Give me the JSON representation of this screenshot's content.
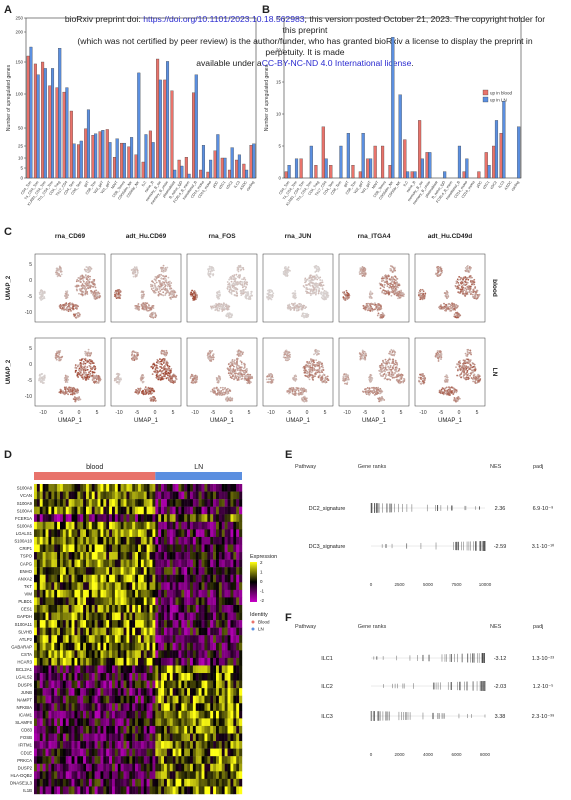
{
  "banner": {
    "line1a": "bioRxiv preprint doi: ",
    "link1": "https://doi.org/10.1101/2023.10.18.562983",
    "line1b": "; this version posted October 21, 2023. The copyright holder for this preprint",
    "line2": "(which was not certified by peer review) is the author/funder, who has granted bioRxiv a license to display the preprint in perpetuity. It is made",
    "line3a": "available under a",
    "link2": "CC-BY-NC-ND 4.0 International license",
    "line3b": "."
  },
  "panels": {
    "A": "A",
    "B": "B",
    "C": "C",
    "D": "D",
    "E": "E",
    "F": "F"
  },
  "panel_c": {
    "columns": [
      "rna_CD69",
      "adt_Hu.CD69",
      "rna_FOS",
      "rna_JUN",
      "rna_ITGA4",
      "adt_Hu.CD49d"
    ],
    "rows": [
      "blood",
      "LN"
    ],
    "ylabel": "UMAP_2",
    "xlabel": "UMAP_1",
    "xticks": [
      "-10",
      "-5",
      "0",
      "5"
    ],
    "yticks": [
      "5",
      "0",
      "-5",
      "-10"
    ]
  },
  "panel_d": {
    "groups": [
      "blood",
      "LN"
    ],
    "group_colors": [
      "#e8736b",
      "#5b8fe0"
    ],
    "genes": [
      "S100A8",
      "VCAN",
      "S100A9",
      "S100A4",
      "FCER1A",
      "S100A6",
      "LGALS1",
      "S100A10",
      "CRIP1",
      "TSPO",
      "CAPG",
      "ENHO",
      "ANXA2",
      "TKT",
      "VIM",
      "PLBD1",
      "CES1",
      "GAPDH",
      "S100A11",
      "SLVHB",
      "ATLP2",
      "GABARAP",
      "CSTA",
      "HCAR3",
      "BCL2A1",
      "LGALS2",
      "DUSP6",
      "JUNB",
      "NAMPT",
      "NFKBIA",
      "ICAM1",
      "SLAMF8",
      "CD83",
      "FOSB",
      "IFITM1",
      "CD1E",
      "PRKCA",
      "DUSP2",
      "HLA-DQB2",
      "DNASE1L3",
      "IL1B"
    ],
    "legend_title": "Expression",
    "legend_ticks": [
      "2",
      "1",
      "0",
      "-1",
      "-2"
    ],
    "identity_title": "Identity",
    "identity_items": [
      "Blood",
      "LN"
    ]
  },
  "panel_e": {
    "headers": [
      "Pathway",
      "Gene ranks",
      "NES",
      "padj"
    ],
    "rows": [
      {
        "pathway": "DC2_signature",
        "nes": "2.36",
        "padj": "6.9·10⁻⁹"
      },
      {
        "pathway": "DC3_signature",
        "nes": "-2.59",
        "padj": "3.1·10⁻¹⁰"
      }
    ],
    "xticks": [
      "0",
      "2500",
      "5000",
      "7500",
      "10000"
    ]
  },
  "panel_f": {
    "headers": [
      "Pathway",
      "Gene ranks",
      "NES",
      "padj"
    ],
    "rows": [
      {
        "pathway": "ILC1",
        "nes": "-3.12",
        "padj": "1.3·10⁻²³"
      },
      {
        "pathway": "ILC2",
        "nes": "-2.03",
        "padj": "1.2·10⁻⁵"
      },
      {
        "pathway": "ILC3",
        "nes": "3.38",
        "padj": "2.3·10⁻³⁹"
      }
    ],
    "xticks": [
      "0",
      "2000",
      "4000",
      "6000",
      "8000"
    ]
  },
  "chart_data": [
    {
      "type": "bar",
      "panel": "A",
      "ylabel": "Number of upregulated genes",
      "ylim": [
        0,
        250
      ],
      "yticks": [
        0,
        5,
        10,
        25,
        50,
        100,
        150,
        200,
        250
      ],
      "categories": [
        "CD4_Tcm",
        "T4_CD4_Tcm",
        "KLRB1_CD4_Tcm",
        "Th1_CD4_Tcm",
        "CD4_Treg",
        "Th17_CD4",
        "CD4_Tem",
        "CD8_Tem",
        "gdT",
        "CD8_Tcm",
        "Vd2_gdT",
        "Vd1_gdT",
        "MAIT",
        "CD8_Temra",
        "CD56dim_NK",
        "CD56br_NK",
        "ILC",
        "naive_B",
        "memory_B_sw",
        "memory_B_unsw",
        "plasmablast",
        "B_naive_IgD",
        "FCRL4_B_mem",
        "transitional_B",
        "CD14_mono",
        "CD16_mono",
        "pDC",
        "cDC1",
        "cDC2",
        "ILC3",
        "ASDC",
        "cycling"
      ],
      "series": [
        {
          "name": "up in blood",
          "color": "#e8736b",
          "values": [
            160,
            147,
            150,
            113,
            110,
            103,
            75,
            27,
            49,
            40,
            45,
            48,
            11,
            29,
            24,
            14,
            8,
            46,
            155,
            122,
            105,
            9,
            11,
            102,
            4,
            3,
            19,
            10,
            4,
            9,
            7,
            26
          ]
        },
        {
          "name": "up in LN",
          "color": "#5b8fe0",
          "values": [
            175,
            130,
            140,
            140,
            173,
            110,
            28,
            32,
            77,
            42,
            47,
            30,
            35,
            29,
            37,
            133,
            41,
            30,
            122,
            151,
            4,
            6,
            2,
            130,
            26,
            9,
            41,
            10,
            23,
            14,
            4,
            28
          ]
        }
      ]
    },
    {
      "type": "bar",
      "panel": "B",
      "ylabel": "Number of upregulated genes",
      "ylim": [
        0,
        25
      ],
      "yticks": [
        0,
        5,
        10,
        15,
        20,
        25
      ],
      "categories": [
        "CD4_Tcm",
        "T4_CD4_Tcm",
        "KLRB1_CD4_Tcm",
        "Th1_CD4_Tcm",
        "CD4_Treg",
        "Th17_CD4",
        "CD4_Tem",
        "CD8_Tem",
        "gdT",
        "CD8_Tcm",
        "Vd2_gdT",
        "Vd1_gdT",
        "MAIT",
        "CD8_Temra",
        "CD56dim_NK",
        "CD56br_NK",
        "ILC",
        "naive_B",
        "memory_B_sw",
        "memory_B_unsw",
        "plasmablast",
        "B_naive_IgD",
        "FCRL4_B_mem",
        "transitional_B",
        "CD14_mono",
        "CD16_mono",
        "pDC",
        "cDC1",
        "cDC2",
        "ILC3",
        "ASDC",
        "cycling"
      ],
      "series": [
        {
          "name": "up in blood",
          "color": "#e8736b",
          "values": [
            1,
            0,
            3,
            0,
            2,
            8,
            2,
            0,
            0,
            2,
            1,
            3,
            5,
            5,
            2,
            0,
            6,
            1,
            9,
            4,
            0,
            0,
            0,
            0,
            1,
            0,
            1,
            4,
            5,
            7,
            0,
            0
          ]
        },
        {
          "name": "up in LN",
          "color": "#5b8fe0",
          "values": [
            2,
            3,
            0,
            5,
            0,
            3,
            0,
            5,
            7,
            0,
            7,
            3,
            0,
            0,
            22,
            13,
            1,
            1,
            3,
            4,
            0,
            1,
            0,
            5,
            3,
            0,
            0,
            2,
            9,
            12,
            0,
            8
          ]
        }
      ]
    }
  ]
}
